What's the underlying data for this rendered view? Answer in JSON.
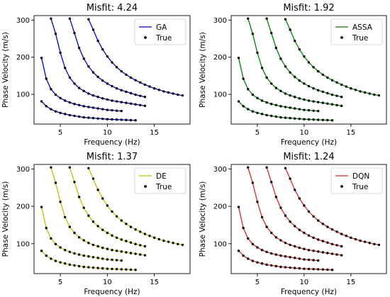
{
  "chart_data": [
    {
      "type": "line",
      "title": "Misfit: 4.24",
      "xlabel": "Frequency (Hz)",
      "ylabel": "Phase Velocity (m/s)",
      "xlim": [
        2.2,
        18.8
      ],
      "ylim": [
        20,
        312
      ],
      "xticks": [
        5,
        10,
        15
      ],
      "yticks": [
        100,
        200,
        300
      ],
      "legend_position": "upper-right",
      "legend": [
        {
          "label": "GA",
          "kind": "line",
          "color": "#0000cc"
        },
        {
          "label": "True",
          "kind": "marker",
          "color": "#000000"
        }
      ],
      "series_color": "#0000cc",
      "series": [
        {
          "x": [
            3.0,
            3.5,
            4.0,
            4.5,
            5.0,
            5.5,
            6.0,
            6.5,
            7.0,
            7.5,
            8.0,
            8.5,
            9.0,
            9.5,
            10.0,
            10.5,
            11.0,
            11.5,
            12.0,
            12.5,
            13.0
          ],
          "y": [
            81,
            68,
            60,
            54,
            50,
            47,
            44,
            42,
            40,
            38,
            37,
            36,
            35,
            34,
            33,
            32.5,
            32,
            31.5,
            31,
            30.5,
            30
          ]
        },
        {
          "x": [
            3.0,
            3.5,
            4.0,
            4.5,
            5.0,
            5.5,
            6.0,
            6.5,
            7.0,
            7.5,
            8.0,
            8.5,
            9.0,
            9.5,
            10.0,
            10.5,
            11.0,
            11.5
          ],
          "y": [
            198,
            142,
            114,
            99,
            90,
            83,
            78,
            74,
            71,
            68,
            66,
            64,
            62,
            60,
            58,
            57,
            56,
            55
          ]
        },
        {
          "x": [
            4.0,
            4.5,
            5.0,
            5.5,
            6.0,
            6.5,
            7.0,
            7.5,
            8.0,
            8.5,
            9.0,
            9.5,
            10.0,
            10.5,
            11.0,
            11.5,
            12.0,
            12.5,
            13.0,
            13.5,
            14.0
          ],
          "y": [
            304,
            263,
            212,
            171,
            145,
            129,
            117,
            109,
            102,
            97,
            93,
            89,
            86,
            83,
            81,
            79,
            77,
            75,
            73,
            71,
            69
          ]
        },
        {
          "x": [
            6.0,
            6.5,
            7.0,
            7.5,
            8.0,
            8.5,
            9.0,
            9.5,
            10.0,
            10.5,
            11.0,
            11.5,
            12.0,
            12.5,
            13.0,
            13.5,
            14.0
          ],
          "y": [
            304,
            265,
            225,
            196,
            175,
            159,
            147,
            137,
            129,
            122,
            116,
            111,
            107,
            103,
            99,
            96,
            93
          ]
        },
        {
          "x": [
            8.0,
            8.5,
            9.0,
            9.5,
            10.0,
            10.5,
            11.0,
            11.5,
            12.0,
            12.5,
            13.0,
            13.5,
            14.0,
            14.5,
            15.0,
            15.5,
            16.0,
            16.5,
            17.0,
            17.5,
            18.0
          ],
          "y": [
            302,
            274,
            244,
            221,
            202,
            186,
            173,
            162,
            153,
            145,
            138,
            132,
            126,
            121,
            116,
            112,
            108,
            105,
            102,
            99,
            97
          ]
        }
      ]
    },
    {
      "type": "line",
      "title": "Misfit: 1.92",
      "xlabel": "Frequency (Hz)",
      "ylabel": "Phase Velocity (m/s)",
      "xlim": [
        2.2,
        18.8
      ],
      "ylim": [
        20,
        312
      ],
      "xticks": [
        5,
        10,
        15
      ],
      "yticks": [
        100,
        200,
        300
      ],
      "legend_position": "upper-right",
      "legend": [
        {
          "label": "ASSA",
          "kind": "line",
          "color": "#008000"
        },
        {
          "label": "True",
          "kind": "marker",
          "color": "#000000"
        }
      ],
      "series_color": "#008000",
      "series": [
        {
          "x": [
            3.0,
            3.5,
            4.0,
            4.5,
            5.0,
            5.5,
            6.0,
            6.5,
            7.0,
            7.5,
            8.0,
            8.5,
            9.0,
            9.5,
            10.0,
            10.5,
            11.0,
            11.5,
            12.0,
            12.5,
            13.0
          ],
          "y": [
            81,
            68,
            60,
            54,
            50,
            47,
            44,
            42,
            40,
            38,
            37,
            36,
            35,
            34,
            33,
            32.5,
            32,
            31.5,
            31,
            30.5,
            30
          ]
        },
        {
          "x": [
            3.0,
            3.5,
            4.0,
            4.5,
            5.0,
            5.5,
            6.0,
            6.5,
            7.0,
            7.5,
            8.0,
            8.5,
            9.0,
            9.5,
            10.0,
            10.5,
            11.0,
            11.5
          ],
          "y": [
            198,
            142,
            114,
            99,
            90,
            83,
            78,
            74,
            71,
            68,
            66,
            64,
            62,
            60,
            58,
            57,
            56,
            55
          ]
        },
        {
          "x": [
            4.0,
            4.5,
            5.0,
            5.5,
            6.0,
            6.5,
            7.0,
            7.5,
            8.0,
            8.5,
            9.0,
            9.5,
            10.0,
            10.5,
            11.0,
            11.5,
            12.0,
            12.5,
            13.0,
            13.5,
            14.0
          ],
          "y": [
            304,
            263,
            212,
            171,
            145,
            129,
            117,
            109,
            102,
            97,
            93,
            89,
            86,
            83,
            81,
            79,
            77,
            75,
            73,
            71,
            69
          ]
        },
        {
          "x": [
            6.0,
            6.5,
            7.0,
            7.5,
            8.0,
            8.5,
            9.0,
            9.5,
            10.0,
            10.5,
            11.0,
            11.5,
            12.0,
            12.5,
            13.0,
            13.5,
            14.0
          ],
          "y": [
            304,
            265,
            225,
            196,
            175,
            159,
            147,
            137,
            129,
            122,
            116,
            111,
            107,
            103,
            99,
            96,
            93
          ]
        },
        {
          "x": [
            8.0,
            8.5,
            9.0,
            9.5,
            10.0,
            10.5,
            11.0,
            11.5,
            12.0,
            12.5,
            13.0,
            13.5,
            14.0,
            14.5,
            15.0,
            15.5,
            16.0,
            16.5,
            17.0,
            17.5,
            18.0
          ],
          "y": [
            302,
            274,
            244,
            221,
            202,
            186,
            173,
            162,
            153,
            145,
            138,
            132,
            126,
            121,
            116,
            112,
            108,
            105,
            102,
            99,
            97
          ]
        }
      ]
    },
    {
      "type": "line",
      "title": "Misfit: 1.37",
      "xlabel": "Frequency (Hz)",
      "ylabel": "Phase Velocity (m/s)",
      "xlim": [
        2.2,
        18.8
      ],
      "ylim": [
        20,
        312
      ],
      "xticks": [
        5,
        10,
        15
      ],
      "yticks": [
        100,
        200,
        300
      ],
      "legend_position": "upper-right",
      "legend": [
        {
          "label": "DE",
          "kind": "line",
          "color": "#bfbf00"
        },
        {
          "label": "True",
          "kind": "marker",
          "color": "#000000"
        }
      ],
      "series_color": "#bfbf00",
      "series": [
        {
          "x": [
            3.0,
            3.5,
            4.0,
            4.5,
            5.0,
            5.5,
            6.0,
            6.5,
            7.0,
            7.5,
            8.0,
            8.5,
            9.0,
            9.5,
            10.0,
            10.5,
            11.0,
            11.5,
            12.0,
            12.5,
            13.0
          ],
          "y": [
            81,
            68,
            60,
            54,
            50,
            47,
            44,
            42,
            40,
            38,
            37,
            36,
            35,
            34,
            33,
            32.5,
            32,
            31.5,
            31,
            30.5,
            30
          ]
        },
        {
          "x": [
            3.0,
            3.5,
            4.0,
            4.5,
            5.0,
            5.5,
            6.0,
            6.5,
            7.0,
            7.5,
            8.0,
            8.5,
            9.0,
            9.5,
            10.0,
            10.5,
            11.0,
            11.5
          ],
          "y": [
            198,
            142,
            114,
            99,
            90,
            83,
            78,
            74,
            71,
            68,
            66,
            64,
            62,
            60,
            58,
            57,
            56,
            55
          ]
        },
        {
          "x": [
            4.0,
            4.5,
            5.0,
            5.5,
            6.0,
            6.5,
            7.0,
            7.5,
            8.0,
            8.5,
            9.0,
            9.5,
            10.0,
            10.5,
            11.0,
            11.5,
            12.0,
            12.5,
            13.0,
            13.5,
            14.0
          ],
          "y": [
            304,
            263,
            212,
            171,
            145,
            129,
            117,
            109,
            102,
            97,
            93,
            89,
            86,
            83,
            81,
            79,
            77,
            75,
            73,
            71,
            69
          ]
        },
        {
          "x": [
            6.0,
            6.5,
            7.0,
            7.5,
            8.0,
            8.5,
            9.0,
            9.5,
            10.0,
            10.5,
            11.0,
            11.5,
            12.0,
            12.5,
            13.0,
            13.5,
            14.0
          ],
          "y": [
            304,
            265,
            225,
            196,
            175,
            159,
            147,
            137,
            129,
            122,
            116,
            111,
            107,
            103,
            99,
            96,
            93
          ]
        },
        {
          "x": [
            8.0,
            8.5,
            9.0,
            9.5,
            10.0,
            10.5,
            11.0,
            11.5,
            12.0,
            12.5,
            13.0,
            13.5,
            14.0,
            14.5,
            15.0,
            15.5,
            16.0,
            16.5,
            17.0,
            17.5,
            18.0
          ],
          "y": [
            302,
            274,
            244,
            221,
            202,
            186,
            173,
            162,
            153,
            145,
            138,
            132,
            126,
            121,
            116,
            112,
            108,
            105,
            102,
            99,
            97
          ]
        }
      ]
    },
    {
      "type": "line",
      "title": "Misfit: 1.24",
      "xlabel": "Frequency (Hz)",
      "ylabel": "Phase Velocity (m/s)",
      "xlim": [
        2.2,
        18.8
      ],
      "ylim": [
        20,
        312
      ],
      "xticks": [
        5,
        10,
        15
      ],
      "yticks": [
        100,
        200,
        300
      ],
      "legend_position": "upper-right",
      "legend": [
        {
          "label": "DQN",
          "kind": "line",
          "color": "#d62728"
        },
        {
          "label": "True",
          "kind": "marker",
          "color": "#000000"
        }
      ],
      "series_color": "#d62728",
      "series": [
        {
          "x": [
            3.0,
            3.5,
            4.0,
            4.5,
            5.0,
            5.5,
            6.0,
            6.5,
            7.0,
            7.5,
            8.0,
            8.5,
            9.0,
            9.5,
            10.0,
            10.5,
            11.0,
            11.5,
            12.0,
            12.5,
            13.0
          ],
          "y": [
            81,
            68,
            60,
            54,
            50,
            47,
            44,
            42,
            40,
            38,
            37,
            36,
            35,
            34,
            33,
            32.5,
            32,
            31.5,
            31,
            30.5,
            30
          ]
        },
        {
          "x": [
            3.0,
            3.5,
            4.0,
            4.5,
            5.0,
            5.5,
            6.0,
            6.5,
            7.0,
            7.5,
            8.0,
            8.5,
            9.0,
            9.5,
            10.0,
            10.5,
            11.0,
            11.5
          ],
          "y": [
            198,
            142,
            114,
            99,
            90,
            83,
            78,
            74,
            71,
            68,
            66,
            64,
            62,
            60,
            58,
            57,
            56,
            55
          ]
        },
        {
          "x": [
            4.0,
            4.5,
            5.0,
            5.5,
            6.0,
            6.5,
            7.0,
            7.5,
            8.0,
            8.5,
            9.0,
            9.5,
            10.0,
            10.5,
            11.0,
            11.5,
            12.0,
            12.5,
            13.0,
            13.5,
            14.0
          ],
          "y": [
            304,
            263,
            212,
            171,
            145,
            129,
            117,
            109,
            102,
            97,
            93,
            89,
            86,
            83,
            81,
            79,
            77,
            75,
            73,
            71,
            69
          ]
        },
        {
          "x": [
            6.0,
            6.5,
            7.0,
            7.5,
            8.0,
            8.5,
            9.0,
            9.5,
            10.0,
            10.5,
            11.0,
            11.5,
            12.0,
            12.5,
            13.0,
            13.5,
            14.0
          ],
          "y": [
            304,
            265,
            225,
            196,
            175,
            159,
            147,
            137,
            129,
            122,
            116,
            111,
            107,
            103,
            99,
            96,
            93
          ]
        },
        {
          "x": [
            8.0,
            8.5,
            9.0,
            9.5,
            10.0,
            10.5,
            11.0,
            11.5,
            12.0,
            12.5,
            13.0,
            13.5,
            14.0,
            14.5,
            15.0,
            15.5,
            16.0,
            16.5,
            17.0,
            17.5,
            18.0
          ],
          "y": [
            302,
            274,
            244,
            221,
            202,
            186,
            173,
            162,
            153,
            145,
            138,
            132,
            126,
            121,
            116,
            112,
            108,
            105,
            102,
            99,
            97
          ]
        }
      ]
    }
  ]
}
